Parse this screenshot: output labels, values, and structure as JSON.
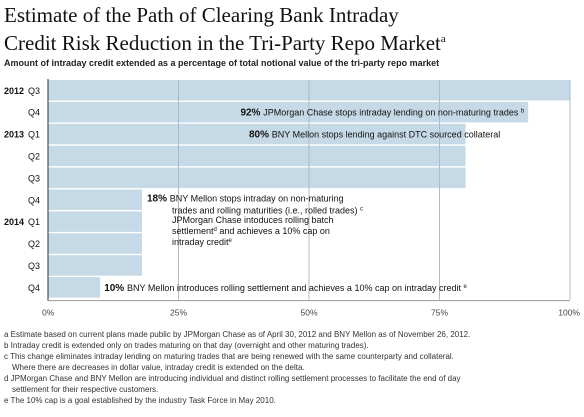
{
  "header": {
    "title_line1": "Estimate of the Path of Clearing Bank Intraday",
    "title_line2": "Credit Risk Reduction in the Tri-Party Repo Market",
    "title_sup": "a",
    "subtitle": "Amount of intraday credit extended as a percentage of total notional value of the tri-party repo market"
  },
  "chart_data": {
    "type": "bar",
    "orientation": "horizontal",
    "categories": [
      {
        "year": "2012",
        "quarter": "Q3"
      },
      {
        "year": "",
        "quarter": "Q4"
      },
      {
        "year": "2013",
        "quarter": "Q1"
      },
      {
        "year": "",
        "quarter": "Q2"
      },
      {
        "year": "",
        "quarter": "Q3"
      },
      {
        "year": "",
        "quarter": "Q4"
      },
      {
        "year": "2014",
        "quarter": "Q1"
      },
      {
        "year": "",
        "quarter": "Q2"
      },
      {
        "year": "",
        "quarter": "Q3"
      },
      {
        "year": "",
        "quarter": "Q4"
      }
    ],
    "values": [
      100,
      92,
      80,
      80,
      80,
      18,
      18,
      18,
      18,
      10
    ],
    "xlim": [
      0,
      100
    ],
    "xticks": [
      "0%",
      "25%",
      "50%",
      "75%",
      "100%"
    ],
    "grid": true,
    "bar_color": "#c6d9e6",
    "grid_color": "#a9bccb",
    "annotations": [
      {
        "row": 1,
        "value_label": "92%",
        "text": "JPMorgan Chase stops intraday lending on non-maturing trades",
        "note": "b",
        "inside_bar": true
      },
      {
        "row": 2,
        "value_label": "80%",
        "text": "BNY Mellon stops lending against DTC sourced collateral",
        "note": "",
        "inside_bar": true
      },
      {
        "row": 5,
        "value_label": "18%",
        "lines": [
          "BNY Mellon stops intraday on non-maturing",
          "trades and rolling maturities (i.e., rolled trades)"
        ],
        "note": "c"
      },
      {
        "row": 6,
        "value_label": "",
        "lines": [
          "JPMorgan Chase intoduces rolling batch",
          "settlement",
          " and achieves a 10% cap on",
          "intraday credit"
        ],
        "notes": [
          "d",
          "e"
        ]
      },
      {
        "row": 9,
        "value_label": "10%",
        "text": "BNY Mellon introduces rolling settlement and achieves a 10% cap on intraday credit",
        "note": "e"
      }
    ]
  },
  "footnotes": [
    "a Estimate based on current plans made public by JPMorgan Chase as of April 30, 2012 and BNY Mellon as of November 26, 2012.",
    "b Intraday credit is extended only on trades maturing on that day (overnight and other maturing trades).",
    "c This change eliminates intraday lending on maturing trades that are being renewed with the same counterparty and collateral.",
    "   Where there are decreases in dollar value, intraday credit is extended on the delta.",
    "d JPMorgan Chase and BNY Mellon are introducing individual and distinct rolling settlement processes to facilitate the end of day",
    "   settlement for their respective customers.",
    "e The 10% cap is a goal established by the industry Task Force in May 2010."
  ]
}
